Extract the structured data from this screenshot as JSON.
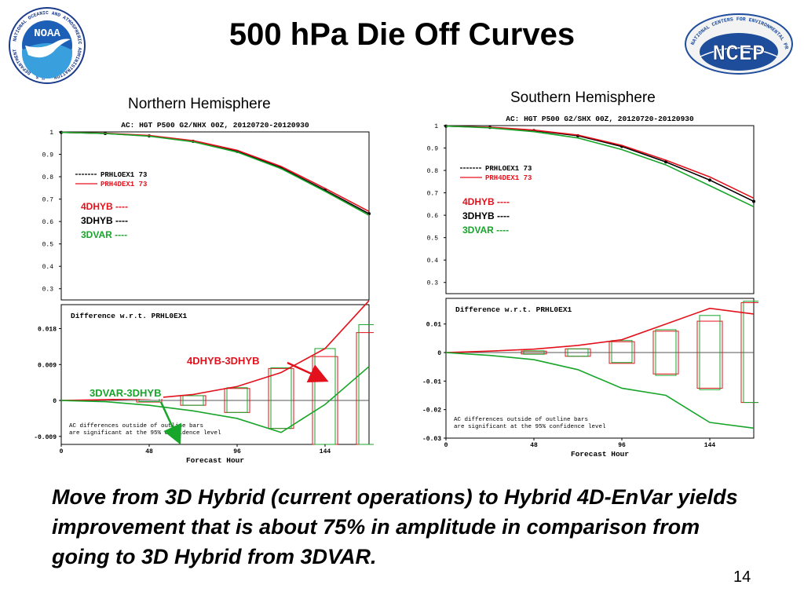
{
  "slide": {
    "title": "500 hPa Die Off Curves",
    "page_number": "14",
    "footer": "Move from 3D Hybrid (current operations) to Hybrid 4D-EnVar yields improvement that is about 75% in amplitude in comparison from going to 3D Hybrid from 3DVAR."
  },
  "logos": {
    "noaa": {
      "text": "NOAA",
      "ring_text": "NATIONAL OCEANIC AND ATMOSPHERIC ADMINISTRATION · U.S. DEPARTMENT OF COMMERCE"
    },
    "ncep": {
      "text": "NCEP",
      "ring_text": "NATIONAL CENTERS FOR ENVIRONMENTAL PREDICTION"
    }
  },
  "annotations": {
    "arrow_4dhyb_3dhyb": "4DHYB-3DHYB",
    "arrow_3dvar_3dhyb": "3DVAR-3DHYB"
  },
  "colors": {
    "exp_4dhyb": "#e3111b",
    "exp_3dhyb": "#000000",
    "exp_3dvar": "#17a52a"
  },
  "chart_data": [
    {
      "id": "nh",
      "type": "line",
      "heading": "Northern Hemisphere",
      "title": "AC: HGT P500 G2/NHX 00Z, 20120720-20120930",
      "top_panel": {
        "x": [
          0,
          24,
          48,
          72,
          96,
          120,
          144,
          168
        ],
        "yticks": [
          "0.3",
          "0.4",
          "0.5",
          "0.6",
          "0.7",
          "0.8",
          "0.9",
          "1"
        ],
        "ylim": [
          0.25,
          1.0
        ],
        "legend": [
          {
            "name": "PRHLOEX1",
            "value": "73"
          },
          {
            "name": "PRH4DEX1",
            "value": "73"
          }
        ],
        "key": [
          {
            "name": "4DHYB ----",
            "color": "#e3111b"
          },
          {
            "name": "3DHYB ----",
            "color": "#000000"
          },
          {
            "name": "3DVAR ----",
            "color": "#17a52a"
          }
        ],
        "series": [
          {
            "name": "PRHLOEX1",
            "color": "#000000",
            "values": [
              0.998,
              0.993,
              0.982,
              0.958,
              0.913,
              0.84,
              0.74,
              0.635
            ]
          },
          {
            "name": "PRH4DEX1",
            "color": "#e3111b",
            "values": [
              0.998,
              0.994,
              0.984,
              0.961,
              0.918,
              0.846,
              0.748,
              0.645
            ]
          },
          {
            "name": "3DVAR",
            "color": "#17a52a",
            "values": [
              0.998,
              0.993,
              0.981,
              0.956,
              0.91,
              0.836,
              0.735,
              0.628
            ]
          }
        ]
      },
      "bottom_panel": {
        "title": "Difference w.r.t. PRHL0EX1",
        "yticks": [
          "-0.009",
          "0",
          "0.009",
          "0.018"
        ],
        "ylim": [
          -0.011,
          0.024
        ],
        "note": [
          "AC differences outside of outline bars",
          "are significant at the 95% confidence level"
        ],
        "xticks": [
          "0",
          "48",
          "96",
          "144"
        ],
        "xlim": [
          0,
          168
        ],
        "xlabel": "Forecast Hour",
        "series": [
          {
            "name": "4DHYB-3DHYB",
            "color": "#e3111b",
            "values": [
              0,
              0.0002,
              0.0005,
              0.0015,
              0.0035,
              0.007,
              0.013,
              0.025
            ]
          },
          {
            "name": "3DVAR-3DHYB",
            "color": "#17a52a",
            "values": [
              0,
              -0.0003,
              -0.0012,
              -0.0026,
              -0.0045,
              -0.008,
              -0.001,
              0.0085
            ]
          }
        ],
        "bars": [
          {
            "x": 48,
            "red": [
              -0.0004,
              0.0006
            ],
            "green": [
              -0.0003,
              0.0005
            ]
          },
          {
            "x": 72,
            "red": [
              -0.0012,
              0.0012
            ],
            "green": [
              -0.0012,
              0.0012
            ]
          },
          {
            "x": 96,
            "red": [
              -0.003,
              0.003
            ],
            "green": [
              -0.003,
              0.0032
            ]
          },
          {
            "x": 120,
            "red": [
              -0.007,
              0.008
            ],
            "green": [
              -0.007,
              0.0082
            ]
          },
          {
            "x": 144,
            "red": [
              -0.011,
              0.011
            ],
            "green": [
              -0.011,
              0.013
            ]
          },
          {
            "x": 168,
            "red": [
              -0.011,
              0.017
            ],
            "green": [
              -0.011,
              0.019
            ]
          }
        ]
      }
    },
    {
      "id": "sh",
      "type": "line",
      "heading": "Southern Hemisphere",
      "title": "AC: HGT P500 G2/SHX 00Z, 20120720-20120930",
      "top_panel": {
        "x": [
          0,
          24,
          48,
          72,
          96,
          120,
          144,
          168
        ],
        "yticks": [
          "0.3",
          "0.4",
          "0.5",
          "0.6",
          "0.7",
          "0.8",
          "0.9",
          "1"
        ],
        "ylim": [
          0.25,
          1.0
        ],
        "legend": [
          {
            "name": "PRHLOEX1",
            "value": "73"
          },
          {
            "name": "PRH4DEX1",
            "value": "73"
          }
        ],
        "key": [
          {
            "name": "4DHYB ----",
            "color": "#e3111b"
          },
          {
            "name": "3DHYB ----",
            "color": "#000000"
          },
          {
            "name": "3DVAR ----",
            "color": "#17a52a"
          }
        ],
        "series": [
          {
            "name": "PRHLOEX1",
            "color": "#000000",
            "values": [
              0.998,
              0.992,
              0.978,
              0.955,
              0.907,
              0.838,
              0.757,
              0.662
            ]
          },
          {
            "name": "PRH4DEX1",
            "color": "#e3111b",
            "values": [
              0.998,
              0.993,
              0.98,
              0.958,
              0.912,
              0.846,
              0.771,
              0.676
            ]
          },
          {
            "name": "3DVAR",
            "color": "#17a52a",
            "values": [
              0.998,
              0.99,
              0.973,
              0.945,
              0.893,
              0.825,
              0.732,
              0.638
            ]
          }
        ]
      },
      "bottom_panel": {
        "title": "Difference w.r.t. PRHL0EX1",
        "yticks": [
          "-0.03",
          "-0.02",
          "-0.01",
          "0",
          "0.01"
        ],
        "ylim": [
          -0.03,
          0.019
        ],
        "note": [
          "AC differences outside of outline bars",
          "are significant at the 95% confidence level"
        ],
        "xticks": [
          "0",
          "48",
          "96",
          "144"
        ],
        "xlim": [
          0,
          168
        ],
        "xlabel": "Forecast Hour",
        "series": [
          {
            "name": "4DHYB-3DHYB",
            "color": "#e3111b",
            "values": [
              0,
              0.0005,
              0.0012,
              0.0025,
              0.0045,
              0.01,
              0.0155,
              0.0135
            ]
          },
          {
            "name": "3DVAR-3DHYB",
            "color": "#17a52a",
            "values": [
              0,
              -0.001,
              -0.0025,
              -0.006,
              -0.0125,
              -0.015,
              -0.0245,
              -0.0265
            ]
          }
        ],
        "bars": [
          {
            "x": 48,
            "red": [
              -0.0005,
              0.0005
            ],
            "green": [
              -0.0006,
              0.0006
            ]
          },
          {
            "x": 72,
            "red": [
              -0.0013,
              0.0013
            ],
            "green": [
              -0.0013,
              0.0013
            ]
          },
          {
            "x": 96,
            "red": [
              -0.0038,
              0.0038
            ],
            "green": [
              -0.0035,
              0.0042
            ]
          },
          {
            "x": 120,
            "red": [
              -0.0075,
              0.0075
            ],
            "green": [
              -0.008,
              0.008
            ]
          },
          {
            "x": 144,
            "red": [
              -0.0125,
              0.011
            ],
            "green": [
              -0.013,
              0.013
            ]
          },
          {
            "x": 168,
            "red": [
              -0.0175,
              0.0175
            ],
            "green": [
              -0.0175,
              0.018
            ]
          }
        ]
      }
    }
  ]
}
